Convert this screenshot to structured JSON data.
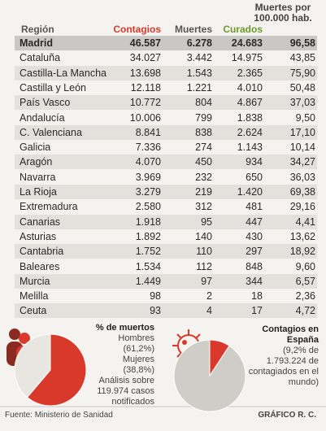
{
  "table": {
    "columns": [
      "Región",
      "Contagios",
      "Muertes",
      "Curados",
      "Muertes por 100.000 hab."
    ],
    "rows": [
      [
        "Madrid",
        "46.587",
        "6.278",
        "24.683",
        "96,58"
      ],
      [
        "Cataluña",
        "34.027",
        "3.442",
        "14.975",
        "43,85"
      ],
      [
        "Castilla-La Mancha",
        "13.698",
        "1.543",
        "2.365",
        "75,90"
      ],
      [
        "Castilla y León",
        "12.118",
        "1.221",
        "4.010",
        "50,48"
      ],
      [
        "País Vasco",
        "10.772",
        "804",
        "4.867",
        "37,03"
      ],
      [
        "Andalucía",
        "10.006",
        "799",
        "1.838",
        "9,50"
      ],
      [
        "C. Valenciana",
        "8.841",
        "838",
        "2.624",
        "17,10"
      ],
      [
        "Galicia",
        "7.336",
        "274",
        "1.143",
        "10,14"
      ],
      [
        "Aragón",
        "4.070",
        "450",
        "934",
        "34,27"
      ],
      [
        "Navarra",
        "3.969",
        "232",
        "650",
        "36,03"
      ],
      [
        "La Rioja",
        "3.279",
        "219",
        "1.420",
        "69,38"
      ],
      [
        "Extremadura",
        "2.580",
        "312",
        "481",
        "29,16"
      ],
      [
        "Canarias",
        "1.918",
        "95",
        "447",
        "4,41"
      ],
      [
        "Asturias",
        "1.892",
        "140",
        "430",
        "13,62"
      ],
      [
        "Cantabria",
        "1.752",
        "110",
        "297",
        "18,92"
      ],
      [
        "Baleares",
        "1.534",
        "112",
        "848",
        "9,60"
      ],
      [
        "Murcia",
        "1.449",
        "97",
        "344",
        "6,57"
      ],
      [
        "Melilla",
        "98",
        "2",
        "18",
        "2,36"
      ],
      [
        "Ceuta",
        "93",
        "4",
        "17",
        "4,72"
      ]
    ]
  },
  "deaths_pie": {
    "title": "% de muertos",
    "men": {
      "label": "Hombres",
      "percent": "(61,2%)",
      "value": 61.2
    },
    "women": {
      "label": "Mujeres",
      "percent": "(38,8%)",
      "value": 38.8
    },
    "note": "Análisis sobre 119.974 casos notificados"
  },
  "spain_pie": {
    "title": "Contagios en España",
    "value": 9.2,
    "note": "(9,2% de 1.793.224 de contagiados en el mundo)"
  },
  "footer": {
    "source": "Fuente: Ministerio de Sanidad",
    "credit": "GRÁFICO R. C."
  }
}
